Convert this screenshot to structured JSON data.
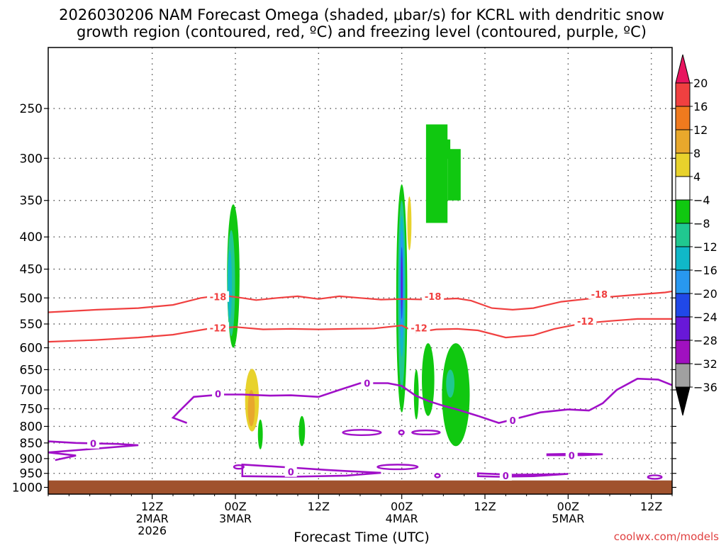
{
  "chart_data": {
    "type": "heatmap",
    "title_line1": "2026030206 NAM Forecast Omega (shaded, μbar/s) for KCRL with dendritic snow",
    "title_line2": "growth region (contoured, red, ºC) and freezing level (contoured, purple, ºC)",
    "xlabel": "Forecast Time (UTC)",
    "credit": "coolwx.com/models",
    "yaxis": {
      "ticks": [
        250,
        300,
        350,
        400,
        450,
        500,
        550,
        600,
        650,
        700,
        750,
        800,
        850,
        900,
        950,
        1000
      ],
      "unit": "hPa",
      "range": [
        200,
        1025
      ],
      "scale": "log"
    },
    "xaxis": {
      "range_hours": [
        -15,
        75
      ],
      "ticks": [
        {
          "hour": 0,
          "line1": "12Z",
          "line2": "2MAR",
          "line3": "2026"
        },
        {
          "hour": 12,
          "line1": "00Z",
          "line2": "3MAR",
          "line3": ""
        },
        {
          "hour": 24,
          "line1": "12Z",
          "line2": "",
          "line3": ""
        },
        {
          "hour": 36,
          "line1": "00Z",
          "line2": "4MAR",
          "line3": ""
        },
        {
          "hour": 48,
          "line1": "12Z",
          "line2": "",
          "line3": ""
        },
        {
          "hour": 60,
          "line1": "00Z",
          "line2": "5MAR",
          "line3": ""
        },
        {
          "hour": 72,
          "line1": "12Z",
          "line2": "",
          "line3": ""
        }
      ]
    },
    "colorbar": {
      "labels": [
        "20",
        "16",
        "12",
        "8",
        "4",
        "−4",
        "−8",
        "−12",
        "−16",
        "−20",
        "−24",
        "−28",
        "−32",
        "−36"
      ],
      "colors": [
        "#e8155f",
        "#f04040",
        "#f07a1e",
        "#e8a82c",
        "#e8d22c",
        "#ffffff",
        "#10c810",
        "#20c890",
        "#10b8c8",
        "#2898f0",
        "#2048e8",
        "#6818d8",
        "#a010c0",
        "#a0a0a0",
        "#000000"
      ]
    },
    "ground_pressure_hpa": 975,
    "ground_color": "#a0522d",
    "dgz_color": "#f04040",
    "freezing_color": "#a010c8",
    "dgz_contours": [
      {
        "label": "-18",
        "label_hour": 9.5,
        "label_p": 498,
        "points": [
          [
            -15,
            527
          ],
          [
            -8,
            522
          ],
          [
            -2,
            519
          ],
          [
            3,
            513
          ],
          [
            7,
            500
          ],
          [
            10,
            495
          ],
          [
            13,
            500
          ],
          [
            15,
            504
          ],
          [
            18,
            500
          ],
          [
            21,
            497
          ],
          [
            24,
            502
          ],
          [
            27,
            497
          ],
          [
            30,
            500
          ],
          [
            33,
            503
          ],
          [
            36,
            502
          ],
          [
            40,
            503
          ],
          [
            44,
            501
          ],
          [
            46,
            505
          ],
          [
            49,
            519
          ],
          [
            52,
            522
          ],
          [
            55,
            519
          ],
          [
            59,
            507
          ],
          [
            64,
            500
          ],
          [
            69,
            495
          ],
          [
            74,
            490
          ],
          [
            75,
            488
          ]
        ]
      },
      {
        "label": "-18",
        "label_hour": 40.5,
        "label_p": 497,
        "points": []
      },
      {
        "label": "-18",
        "label_hour": 64.5,
        "label_p": 493,
        "points": []
      },
      {
        "label": "-12",
        "label_hour": 9.5,
        "label_p": 558,
        "points": [
          [
            -15,
            587
          ],
          [
            -8,
            583
          ],
          [
            -2,
            578
          ],
          [
            3,
            572
          ],
          [
            8,
            560
          ],
          [
            12,
            556
          ],
          [
            16,
            561
          ],
          [
            20,
            560
          ],
          [
            24,
            561
          ],
          [
            28,
            560
          ],
          [
            32,
            559
          ],
          [
            36,
            553
          ],
          [
            38,
            567
          ],
          [
            41,
            561
          ],
          [
            44,
            560
          ],
          [
            47,
            563
          ],
          [
            51,
            578
          ],
          [
            55,
            573
          ],
          [
            58,
            560
          ],
          [
            62,
            549
          ],
          [
            66,
            544
          ],
          [
            70,
            540
          ],
          [
            75,
            540
          ]
        ]
      },
      {
        "label": "-12",
        "label_hour": 38.5,
        "label_p": 558,
        "points": []
      },
      {
        "label": "-12",
        "label_hour": 62.5,
        "label_p": 544,
        "points": []
      }
    ],
    "freezing_contours": [
      {
        "label": "0",
        "label_hour": 9.5,
        "label_p": 710,
        "points": [
          [
            5,
            790
          ],
          [
            3,
            775
          ],
          [
            4,
            755
          ],
          [
            6,
            718
          ],
          [
            10,
            712
          ],
          [
            13,
            712
          ],
          [
            17,
            715
          ],
          [
            20,
            714
          ],
          [
            24,
            718
          ],
          [
            27,
            700
          ],
          [
            30,
            683
          ],
          [
            34,
            683
          ],
          [
            36,
            690
          ],
          [
            38,
            715
          ],
          [
            40,
            730
          ],
          [
            42,
            742
          ],
          [
            44,
            752
          ],
          [
            47,
            770
          ],
          [
            50,
            790
          ],
          [
            53,
            775
          ],
          [
            56,
            760
          ],
          [
            60,
            752
          ],
          [
            63,
            755
          ],
          [
            65,
            735
          ],
          [
            67,
            700
          ],
          [
            70,
            672
          ],
          [
            73,
            674
          ],
          [
            75,
            688
          ]
        ]
      },
      {
        "label": "0",
        "label_hour": 31,
        "label_p": 683,
        "points": []
      },
      {
        "label": "0",
        "label_hour": 52,
        "label_p": 783,
        "points": []
      },
      {
        "label": "0",
        "label_hour": -8.5,
        "label_p": 852,
        "points": [
          [
            -15,
            845
          ],
          [
            -11,
            850
          ],
          [
            -5,
            853
          ],
          [
            -2,
            857
          ],
          [
            -15,
            880
          ],
          [
            -11,
            890
          ],
          [
            -14,
            905
          ]
        ]
      },
      {
        "label": "0",
        "label_hour": 60.5,
        "label_p": 890,
        "points": [
          [
            57,
            886
          ],
          [
            62,
            884
          ],
          [
            65,
            886
          ],
          [
            62,
            889
          ],
          [
            57,
            889
          ]
        ]
      },
      {
        "label": "0",
        "label_hour": 20,
        "label_p": 945,
        "points": [
          [
            13,
            920
          ],
          [
            20,
            930
          ],
          [
            25,
            938
          ],
          [
            28,
            942
          ],
          [
            33,
            948
          ],
          [
            28,
            958
          ],
          [
            20,
            962
          ],
          [
            13,
            960
          ]
        ]
      },
      {
        "label": "0",
        "label_hour": 51,
        "label_p": 958,
        "points": [
          [
            47,
            950
          ],
          [
            52,
            955
          ],
          [
            56,
            954
          ],
          [
            60,
            952
          ],
          [
            55,
            960
          ],
          [
            50,
            962
          ],
          [
            47,
            960
          ]
        ]
      }
    ],
    "omega_blobs": [
      {
        "color": "#10c810",
        "hour": 11.7,
        "p_top": 355,
        "p_bottom": 600,
        "half_width_h": 0.9
      },
      {
        "color": "#20c890",
        "hour": 11.4,
        "p_top": 390,
        "p_bottom": 575,
        "half_width_h": 0.55
      },
      {
        "color": "#10b8c8",
        "hour": 11.2,
        "p_top": 420,
        "p_bottom": 540,
        "half_width_h": 0.3
      },
      {
        "color": "#e8d22c",
        "hour": 14.4,
        "p_top": 648,
        "p_bottom": 815,
        "half_width_h": 1.0
      },
      {
        "color": "#e8a82c",
        "hour": 14.3,
        "p_top": 700,
        "p_bottom": 800,
        "half_width_h": 0.5
      },
      {
        "color": "#10c810",
        "hour": 15.6,
        "p_top": 780,
        "p_bottom": 870,
        "half_width_h": 0.35
      },
      {
        "color": "#10c810",
        "hour": 21.6,
        "p_top": 770,
        "p_bottom": 860,
        "half_width_h": 0.45
      },
      {
        "color": "#10c810",
        "hour": 36.0,
        "p_top": 330,
        "p_bottom": 760,
        "half_width_h": 0.8
      },
      {
        "color": "#20c890",
        "hour": 36.0,
        "p_top": 350,
        "p_bottom": 700,
        "half_width_h": 0.55
      },
      {
        "color": "#10b8c8",
        "hour": 36.0,
        "p_top": 370,
        "p_bottom": 620,
        "half_width_h": 0.4
      },
      {
        "color": "#2898f0",
        "hour": 36.0,
        "p_top": 390,
        "p_bottom": 580,
        "half_width_h": 0.25
      },
      {
        "color": "#2048e8",
        "hour": 36.0,
        "p_top": 415,
        "p_bottom": 540,
        "half_width_h": 0.15
      },
      {
        "color": "#6818d8",
        "hour": 36.0,
        "p_top": 430,
        "p_bottom": 520,
        "half_width_h": 0.08
      },
      {
        "color": "#e8d22c",
        "hour": 37.1,
        "p_top": 345,
        "p_bottom": 420,
        "half_width_h": 0.3
      },
      {
        "color": "#10c810",
        "hour": 38.1,
        "p_top": 650,
        "p_bottom": 780,
        "half_width_h": 0.35
      },
      {
        "color": "#10c810",
        "hour": 39.8,
        "p_top": 590,
        "p_bottom": 770,
        "half_width_h": 0.9
      },
      {
        "color": "#10c810",
        "hour": 43.8,
        "p_top": 590,
        "p_bottom": 860,
        "half_width_h": 2.0
      },
      {
        "color": "#20c890",
        "hour": 43.0,
        "p_top": 650,
        "p_bottom": 720,
        "half_width_h": 0.6
      }
    ],
    "omega_patches": [
      {
        "color": "#10c810",
        "hour_range": [
          39.5,
          42.6
        ],
        "p_range": [
          265,
          380
        ]
      },
      {
        "color": "#10c810",
        "hour_range": [
          42.6,
          44.5
        ],
        "p_range": [
          290,
          350
        ]
      },
      {
        "color": "#10c810",
        "hour_range": [
          41.0,
          43.0
        ],
        "p_range": [
          280,
          300
        ]
      }
    ],
    "small_zero_loops": [
      {
        "hour_range": [
          27.5,
          33
        ],
        "p_center": 818,
        "ry_hpa": 8
      },
      {
        "hour_range": [
          35.6,
          36.3
        ],
        "p_center": 818,
        "ry_hpa": 6
      },
      {
        "hour_range": [
          37.5,
          41.5
        ],
        "p_center": 818,
        "ry_hpa": 6
      },
      {
        "hour_range": [
          11.8,
          13.2
        ],
        "p_center": 928,
        "ry_hpa": 6
      },
      {
        "hour_range": [
          32.5,
          38.3
        ],
        "p_center": 928,
        "ry_hpa": 8
      },
      {
        "hour_range": [
          40.8,
          41.5
        ],
        "p_center": 958,
        "ry_hpa": 3
      },
      {
        "hour_range": [
          71.5,
          73.5
        ],
        "p_center": 963,
        "ry_hpa": 4
      }
    ]
  }
}
